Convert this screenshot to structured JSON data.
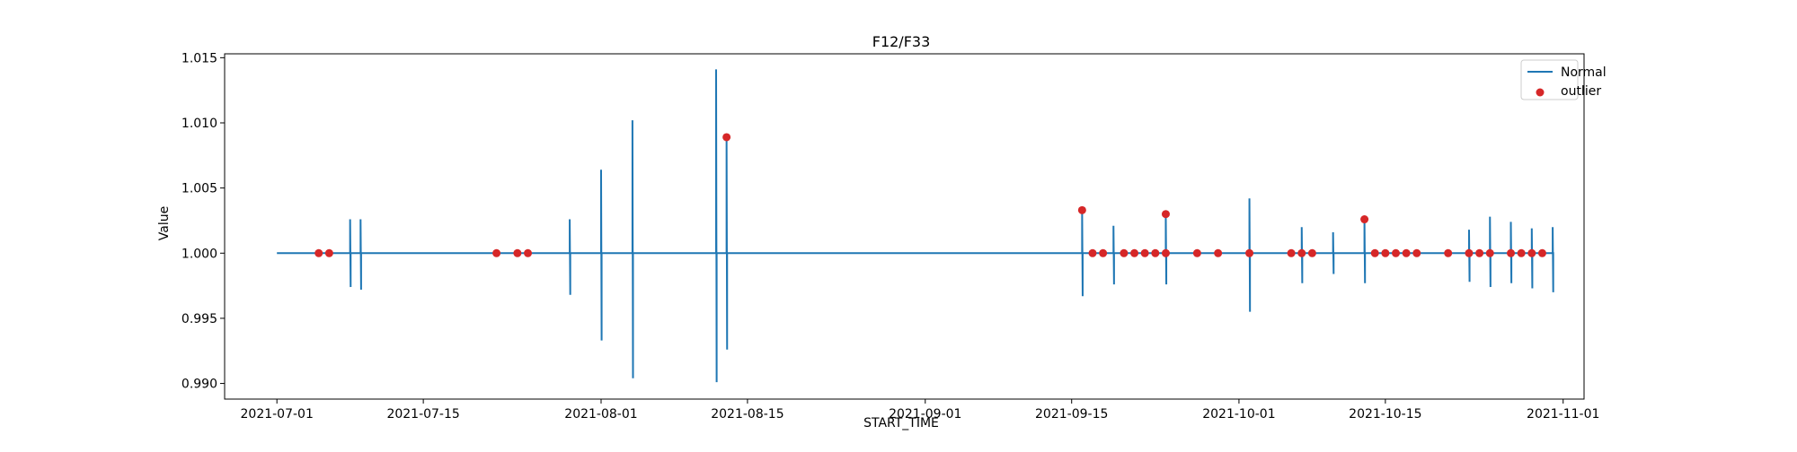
{
  "chart_data": {
    "type": "line",
    "title": "F12/F33",
    "xlabel": "START_TIME",
    "ylabel": "Value",
    "x_axis_type": "date",
    "xlim": [
      "2021-06-26",
      "2021-11-03"
    ],
    "ylim": [
      0.9888,
      1.0153
    ],
    "x_ticks": [
      "2021-07-01",
      "2021-07-15",
      "2021-08-01",
      "2021-08-15",
      "2021-09-01",
      "2021-09-15",
      "2021-10-01",
      "2021-10-15",
      "2021-11-01"
    ],
    "y_ticks": [
      0.99,
      0.995,
      1.0,
      1.005,
      1.01,
      1.015
    ],
    "y_tick_labels": [
      "0.990",
      "0.995",
      "1.000",
      "1.005",
      "1.010",
      "1.015"
    ],
    "grid": false,
    "legend_position": "top-right",
    "legend": [
      {
        "label": "Normal",
        "marker": "line",
        "color": "#1f77b4"
      },
      {
        "label": "outlier",
        "marker": "dot",
        "color": "#d62728"
      }
    ],
    "series": [
      {
        "name": "Normal",
        "color": "#1f77b4",
        "baseline": 1.0,
        "x_range": [
          "2021-07-01",
          "2021-10-31"
        ],
        "spikes": [
          {
            "x": "2021-07-08",
            "low": 0.9974,
            "high": 1.0026
          },
          {
            "x": "2021-07-09",
            "low": 0.9972,
            "high": 1.0026
          },
          {
            "x": "2021-07-29",
            "low": 0.9968,
            "high": 1.0026
          },
          {
            "x": "2021-08-01",
            "low": 0.9933,
            "high": 1.0064
          },
          {
            "x": "2021-08-04",
            "low": 0.9904,
            "high": 1.0102
          },
          {
            "x": "2021-08-12",
            "low": 0.9901,
            "high": 1.0141
          },
          {
            "x": "2021-08-13",
            "low": 0.9926,
            "high": 1.0088
          },
          {
            "x": "2021-09-16",
            "low": 0.9967,
            "high": 1.0033
          },
          {
            "x": "2021-09-19",
            "low": 0.9976,
            "high": 1.0021
          },
          {
            "x": "2021-09-24",
            "low": 0.9976,
            "high": 1.003
          },
          {
            "x": "2021-10-02",
            "low": 0.9955,
            "high": 1.0042
          },
          {
            "x": "2021-10-07",
            "low": 0.9977,
            "high": 1.002
          },
          {
            "x": "2021-10-10",
            "low": 0.9984,
            "high": 1.0016
          },
          {
            "x": "2021-10-13",
            "low": 0.9977,
            "high": 1.0026
          },
          {
            "x": "2021-10-23",
            "low": 0.9978,
            "high": 1.0018
          },
          {
            "x": "2021-10-25",
            "low": 0.9974,
            "high": 1.0028
          },
          {
            "x": "2021-10-27",
            "low": 0.9977,
            "high": 1.0024
          },
          {
            "x": "2021-10-29",
            "low": 0.9973,
            "high": 1.0019
          },
          {
            "x": "2021-10-31",
            "low": 0.997,
            "high": 1.002
          }
        ]
      },
      {
        "name": "outlier",
        "type": "scatter",
        "color": "#d62728",
        "points": [
          {
            "x": "2021-07-05",
            "y": 1.0
          },
          {
            "x": "2021-07-06",
            "y": 1.0
          },
          {
            "x": "2021-07-22",
            "y": 1.0
          },
          {
            "x": "2021-07-24",
            "y": 1.0
          },
          {
            "x": "2021-07-25",
            "y": 1.0
          },
          {
            "x": "2021-08-13",
            "y": 1.0089
          },
          {
            "x": "2021-09-16",
            "y": 1.0033
          },
          {
            "x": "2021-09-17",
            "y": 1.0
          },
          {
            "x": "2021-09-18",
            "y": 1.0
          },
          {
            "x": "2021-09-20",
            "y": 1.0
          },
          {
            "x": "2021-09-21",
            "y": 1.0
          },
          {
            "x": "2021-09-22",
            "y": 1.0
          },
          {
            "x": "2021-09-23",
            "y": 1.0
          },
          {
            "x": "2021-09-24",
            "y": 1.0
          },
          {
            "x": "2021-09-24",
            "y": 1.003
          },
          {
            "x": "2021-09-27",
            "y": 1.0
          },
          {
            "x": "2021-09-29",
            "y": 1.0
          },
          {
            "x": "2021-10-02",
            "y": 1.0
          },
          {
            "x": "2021-10-06",
            "y": 1.0
          },
          {
            "x": "2021-10-07",
            "y": 1.0
          },
          {
            "x": "2021-10-08",
            "y": 1.0
          },
          {
            "x": "2021-10-13",
            "y": 1.0026
          },
          {
            "x": "2021-10-14",
            "y": 1.0
          },
          {
            "x": "2021-10-15",
            "y": 1.0
          },
          {
            "x": "2021-10-16",
            "y": 1.0
          },
          {
            "x": "2021-10-17",
            "y": 1.0
          },
          {
            "x": "2021-10-18",
            "y": 1.0
          },
          {
            "x": "2021-10-21",
            "y": 1.0
          },
          {
            "x": "2021-10-23",
            "y": 1.0
          },
          {
            "x": "2021-10-24",
            "y": 1.0
          },
          {
            "x": "2021-10-25",
            "y": 1.0
          },
          {
            "x": "2021-10-27",
            "y": 1.0
          },
          {
            "x": "2021-10-28",
            "y": 1.0
          },
          {
            "x": "2021-10-29",
            "y": 1.0
          },
          {
            "x": "2021-10-30",
            "y": 1.0
          }
        ]
      }
    ]
  }
}
